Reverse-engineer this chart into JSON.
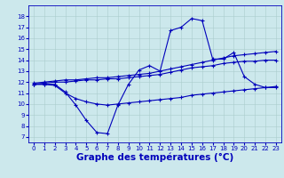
{
  "background_color": "#cce8ec",
  "plot_bg_color": "#cce8ec",
  "grid_color": "#aacccc",
  "line_color": "#0000bb",
  "xlabel": "Graphe des températures (°C)",
  "xlabel_fontsize": 7.5,
  "ylim": [
    6.5,
    19.0
  ],
  "xlim": [
    -0.5,
    23.5
  ],
  "yticks": [
    7,
    8,
    9,
    10,
    11,
    12,
    13,
    14,
    15,
    16,
    17,
    18
  ],
  "xticks": [
    0,
    1,
    2,
    3,
    4,
    5,
    6,
    7,
    8,
    9,
    10,
    11,
    12,
    13,
    14,
    15,
    16,
    17,
    18,
    19,
    20,
    21,
    22,
    23
  ],
  "series": [
    {
      "x": [
        0,
        1,
        2,
        3,
        4,
        5,
        6,
        7,
        8,
        9,
        10,
        11,
        12,
        13,
        14,
        15,
        16,
        17,
        18,
        19,
        20,
        21,
        22,
        23
      ],
      "y": [
        11.8,
        11.8,
        11.8,
        11.1,
        9.9,
        8.5,
        7.4,
        7.3,
        9.9,
        11.8,
        13.1,
        13.5,
        13.0,
        16.7,
        17.0,
        17.8,
        17.6,
        14.1,
        14.1,
        14.7,
        12.5,
        11.8,
        11.5,
        11.5
      ]
    },
    {
      "x": [
        0,
        1,
        2,
        3,
        4,
        5,
        6,
        7,
        8,
        9,
        10,
        11,
        12,
        13,
        14,
        15,
        16,
        17,
        18,
        19,
        20,
        21,
        22,
        23
      ],
      "y": [
        11.9,
        12.0,
        12.1,
        12.2,
        12.2,
        12.3,
        12.4,
        12.4,
        12.5,
        12.6,
        12.7,
        12.8,
        13.0,
        13.2,
        13.4,
        13.6,
        13.8,
        14.0,
        14.2,
        14.4,
        14.5,
        14.6,
        14.7,
        14.8
      ]
    },
    {
      "x": [
        0,
        1,
        2,
        3,
        4,
        5,
        6,
        7,
        8,
        9,
        10,
        11,
        12,
        13,
        14,
        15,
        16,
        17,
        18,
        19,
        20,
        21,
        22,
        23
      ],
      "y": [
        11.8,
        11.9,
        12.0,
        12.0,
        12.1,
        12.2,
        12.2,
        12.3,
        12.3,
        12.4,
        12.5,
        12.6,
        12.7,
        12.9,
        13.1,
        13.3,
        13.4,
        13.5,
        13.7,
        13.8,
        13.9,
        13.9,
        14.0,
        14.0
      ]
    },
    {
      "x": [
        0,
        1,
        2,
        3,
        4,
        5,
        6,
        7,
        8,
        9,
        10,
        11,
        12,
        13,
        14,
        15,
        16,
        17,
        18,
        19,
        20,
        21,
        22,
        23
      ],
      "y": [
        11.8,
        11.8,
        11.7,
        11.0,
        10.5,
        10.2,
        10.0,
        9.9,
        10.0,
        10.1,
        10.2,
        10.3,
        10.4,
        10.5,
        10.6,
        10.8,
        10.9,
        11.0,
        11.1,
        11.2,
        11.3,
        11.4,
        11.5,
        11.6
      ]
    }
  ]
}
